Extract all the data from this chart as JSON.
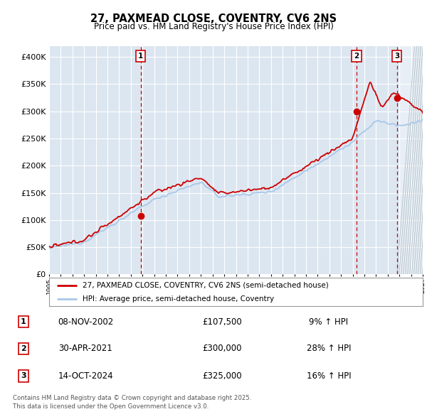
{
  "title": "27, PAXMEAD CLOSE, COVENTRY, CV6 2NS",
  "subtitle": "Price paid vs. HM Land Registry's House Price Index (HPI)",
  "hpi_color": "#a8c8e8",
  "price_color": "#cc0000",
  "background_color": "#dce6f1",
  "hatch_color": "#c0cfe0",
  "transactions": [
    {
      "num": 1,
      "date_str": "08-NOV-2002",
      "price": 107500,
      "year": 2002.85,
      "pct": "9% ↑ HPI"
    },
    {
      "num": 2,
      "date_str": "30-APR-2021",
      "price": 300000,
      "year": 2021.33,
      "pct": "28% ↑ HPI"
    },
    {
      "num": 3,
      "date_str": "14-OCT-2024",
      "price": 325000,
      "year": 2024.78,
      "pct": "16% ↑ HPI"
    }
  ],
  "legend_label_price": "27, PAXMEAD CLOSE, COVENTRY, CV6 2NS (semi-detached house)",
  "legend_label_hpi": "HPI: Average price, semi-detached house, Coventry",
  "footer": "Contains HM Land Registry data © Crown copyright and database right 2025.\nThis data is licensed under the Open Government Licence v3.0.",
  "ylim": [
    0,
    420000
  ],
  "xlim_start": 1995,
  "xlim_end": 2027
}
